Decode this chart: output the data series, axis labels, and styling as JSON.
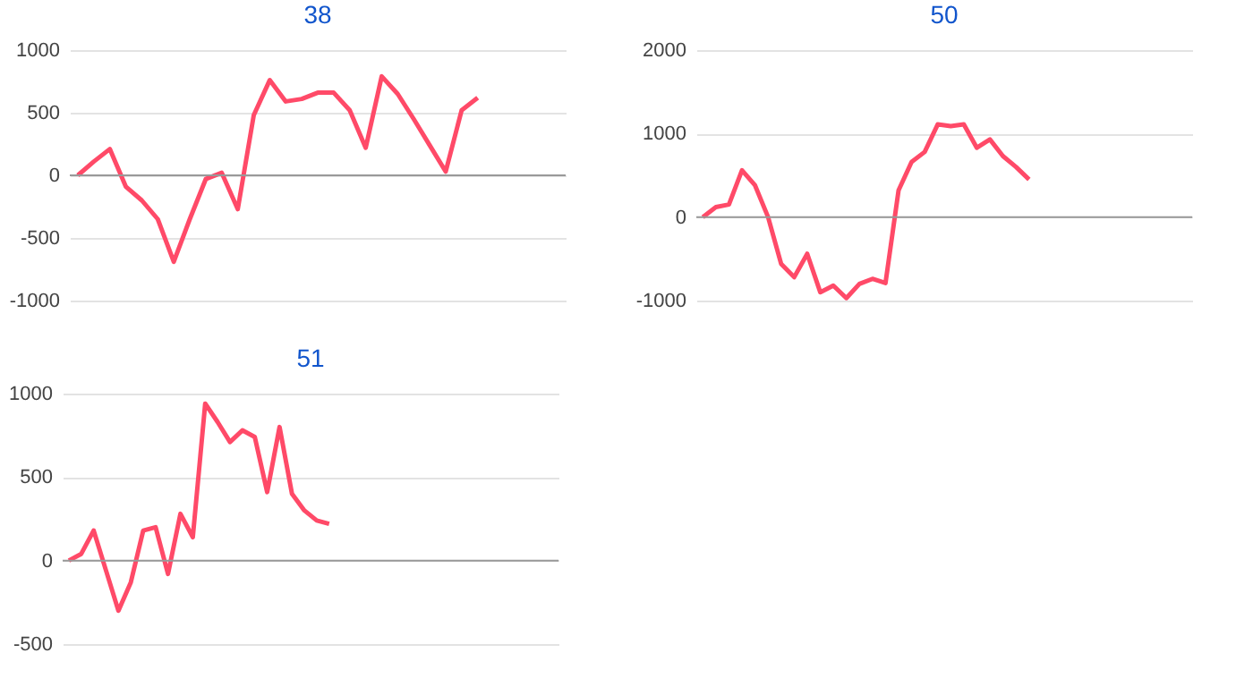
{
  "chart_data": [
    {
      "type": "line",
      "title": "38",
      "categories": [
        null,
        null,
        null,
        null,
        null,
        null,
        null,
        null,
        null,
        null,
        null,
        null,
        null,
        null,
        null,
        null,
        null,
        null,
        null,
        null,
        null,
        null,
        null,
        null,
        null,
        null,
        null,
        null,
        null,
        null,
        null
      ],
      "series": [
        {
          "color": "#ff4a68",
          "values": [
            0,
            110,
            210,
            -90,
            -200,
            -350,
            -690,
            -350,
            -30,
            20,
            -270,
            480,
            760,
            590,
            610,
            660,
            660,
            520,
            220,
            790,
            650,
            450,
            240,
            30,
            520,
            620,
            null,
            null,
            null,
            null,
            null
          ]
        }
      ],
      "ylim": [
        -1000,
        1000
      ],
      "yticks": [
        -1000,
        -500,
        0,
        500,
        1000
      ],
      "grid": true,
      "tick_labels": "y",
      "ref_lines": [
        {
          "axis": "y",
          "value": 0,
          "color": "#999999"
        }
      ]
    },
    {
      "type": "line",
      "title": "50",
      "categories": [
        null,
        null,
        null,
        null,
        null,
        null,
        null,
        null,
        null,
        null,
        null,
        null,
        null,
        null,
        null,
        null,
        null,
        null,
        null,
        null,
        null,
        null,
        null,
        null,
        null,
        null,
        null,
        null,
        null,
        null,
        null,
        null,
        null,
        null,
        null,
        null,
        null,
        null
      ],
      "series": [
        {
          "color": "#ff4a68",
          "values": [
            0,
            120,
            150,
            560,
            380,
            0,
            -560,
            -720,
            -440,
            -900,
            -820,
            -970,
            -800,
            -740,
            -790,
            320,
            660,
            780,
            1110,
            1090,
            1110,
            830,
            930,
            730,
            600,
            450,
            null,
            null,
            null,
            null,
            null,
            null,
            null,
            null,
            null,
            null,
            null,
            null
          ]
        }
      ],
      "ylim": [
        -1000,
        2000
      ],
      "yticks": [
        -1000,
        0,
        1000,
        2000
      ],
      "grid": true,
      "tick_labels": "y",
      "ref_lines": [
        {
          "axis": "y",
          "value": 0,
          "color": "#999999"
        }
      ]
    },
    {
      "type": "line",
      "title": "51",
      "categories": [
        null,
        null,
        null,
        null,
        null,
        null,
        null,
        null,
        null,
        null,
        null,
        null,
        null,
        null,
        null,
        null,
        null,
        null,
        null,
        null,
        null,
        null,
        null,
        null,
        null,
        null,
        null,
        null,
        null,
        null,
        null,
        null,
        null,
        null,
        null,
        null,
        null,
        null,
        null,
        null
      ],
      "series": [
        {
          "color": "#ff4a68",
          "values": [
            0,
            40,
            180,
            -60,
            -300,
            -130,
            180,
            200,
            -80,
            280,
            140,
            940,
            830,
            710,
            780,
            740,
            410,
            800,
            400,
            300,
            240,
            220,
            null,
            null,
            null,
            null,
            null,
            null,
            null,
            null,
            null,
            null,
            null,
            null,
            null,
            null,
            null,
            null,
            null,
            null
          ]
        }
      ],
      "ylim": [
        -500,
        1000
      ],
      "yticks": [
        -500,
        0,
        500,
        1000
      ],
      "grid": true,
      "tick_labels": "y",
      "ref_lines": [
        {
          "axis": "y",
          "value": 0,
          "color": "#999999"
        }
      ]
    }
  ]
}
